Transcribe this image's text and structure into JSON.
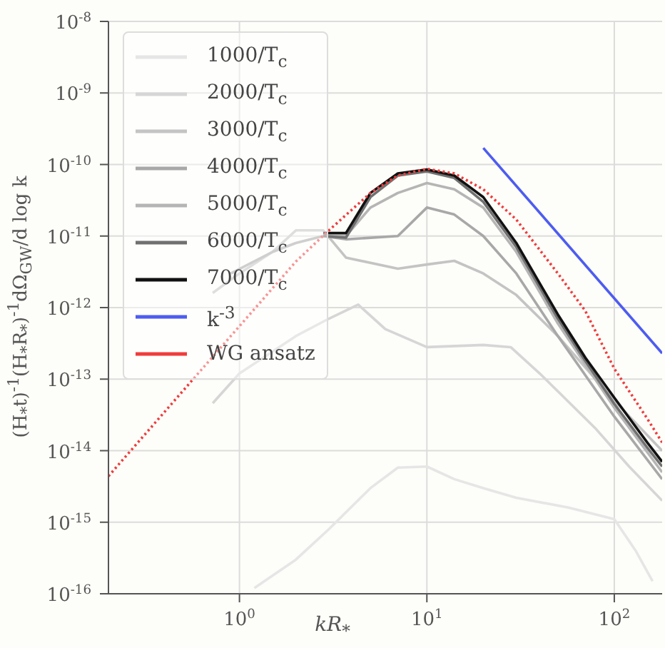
{
  "chart_data": {
    "type": "line",
    "xlabel": "kR$_{*}$",
    "ylabel": "(H$_{*}$t)$^{-1}$(H$_{*}$R$_{*}$)$^{-1}$dΩ$_{GW}$/d log k",
    "log": "xy",
    "grid": true,
    "legend": "top left",
    "marker": "none",
    "xlim": [
      0.2,
      180
    ],
    "ylim": [
      1e-16,
      1e-08
    ],
    "xticks": [
      {
        "value": 1,
        "label": "10$^{0}$"
      },
      {
        "value": 10,
        "label": "10$^{1}$"
      },
      {
        "value": 100,
        "label": "10$^{2}$"
      }
    ],
    "yticks": [
      {
        "value": 1e-16,
        "label": "10$^{-16}$"
      },
      {
        "value": 1e-15,
        "label": "10$^{-15}$"
      },
      {
        "value": 1e-14,
        "label": "10$^{-14}$"
      },
      {
        "value": 1e-13,
        "label": "10$^{-13}$"
      },
      {
        "value": 1e-12,
        "label": "10$^{-12}$"
      },
      {
        "value": 1e-11,
        "label": "10$^{-11}$"
      },
      {
        "value": 1e-10,
        "label": "10$^{-10}$"
      },
      {
        "value": 1e-09,
        "label": "10$^{-9}$"
      },
      {
        "value": 1e-08,
        "label": "10$^{-8}$"
      }
    ],
    "series": [
      {
        "name": "1000/T$_{c}$",
        "color": "#e6e6e6",
        "x": [
          1.2,
          2,
          3,
          5,
          7,
          10,
          14,
          20,
          30,
          57,
          100,
          130,
          160
        ],
        "values": [
          1.2e-16,
          3e-16,
          8e-16,
          3e-15,
          5.8e-15,
          6e-15,
          4e-15,
          3e-15,
          2.2e-15,
          1.6e-15,
          1.1e-15,
          4e-16,
          1.5e-16
        ]
      },
      {
        "name": "2000/T$_{c}$",
        "color": "#d6d6d6",
        "x": [
          0.72,
          1,
          2,
          3,
          4.3,
          6,
          10,
          20,
          28,
          40,
          80,
          120,
          180
        ],
        "values": [
          4.6e-14,
          1.2e-13,
          4e-13,
          7e-13,
          1.1e-12,
          5e-13,
          2.8e-13,
          3e-13,
          2.8e-13,
          1.2e-13,
          2e-14,
          6e-15,
          2e-15
        ]
      },
      {
        "name": "3000/T$_{c}$",
        "color": "#c4c4c4",
        "x": [
          0.72,
          1,
          1.5,
          2,
          2.8,
          3.7,
          7,
          10,
          14,
          20,
          30,
          50,
          100,
          180
        ],
        "values": [
          1.6e-12,
          3e-12,
          6e-12,
          1.2e-11,
          1.2e-11,
          5e-12,
          3.5e-12,
          4e-12,
          4.5e-12,
          3e-12,
          1.5e-12,
          4e-13,
          5e-14,
          1e-14
        ]
      },
      {
        "name": "4000/T$_{c}$",
        "color": "#a8a8a8",
        "x": [
          0.9,
          1.5,
          2,
          2.8,
          3.7,
          7,
          10,
          14,
          20,
          30,
          50,
          100,
          180
        ],
        "values": [
          3e-12,
          6e-12,
          8e-12,
          1e-11,
          9e-12,
          1e-11,
          2.5e-11,
          2e-11,
          1e-11,
          3e-12,
          4e-13,
          3e-14,
          4e-15
        ]
      },
      {
        "name": "5000/T$_{c}$",
        "color": "#b5b5b5",
        "x": [
          2.8,
          3.7,
          5,
          7,
          10,
          14,
          20,
          30,
          50,
          100,
          180
        ],
        "values": [
          1e-11,
          1e-11,
          2.5e-11,
          4e-11,
          5.5e-11,
          4.5e-11,
          2.5e-11,
          6e-12,
          6e-13,
          4e-14,
          5e-15
        ]
      },
      {
        "name": "6000/T$_{c}$",
        "color": "#707070",
        "x": [
          2.8,
          3.7,
          5,
          7,
          10,
          14,
          20,
          30,
          50,
          70,
          100,
          150,
          180
        ],
        "values": [
          1e-11,
          9.5e-12,
          3.5e-11,
          7e-11,
          8e-11,
          6.5e-11,
          3e-11,
          7e-12,
          7e-13,
          1.8e-13,
          4.5e-14,
          1.1e-14,
          6e-15
        ]
      },
      {
        "name": "7000/T$_{c}$",
        "color": "#111111",
        "x": [
          2.8,
          3.7,
          5,
          7,
          10,
          14,
          20,
          30,
          50,
          70,
          100,
          150,
          180
        ],
        "values": [
          1.1e-11,
          1.1e-11,
          4e-11,
          7.5e-11,
          8.5e-11,
          7e-11,
          3.5e-11,
          8e-12,
          8e-13,
          2e-13,
          5.5e-14,
          1.3e-14,
          7e-15
        ]
      },
      {
        "name": "k$^{-3}$",
        "color": "#4d5cf0",
        "x": [
          20,
          180
        ],
        "values": [
          1.7e-10,
          2.3e-13
        ]
      },
      {
        "name": "WG ansatz",
        "color": "#f03c3c",
        "line_style": "dotted",
        "x": [
          0.2,
          1,
          2,
          3,
          5,
          7,
          10,
          14,
          20,
          30,
          50,
          70,
          100,
          150,
          180
        ],
        "values": [
          4.4e-15,
          5.5e-13,
          4.4e-12,
          1.2e-11,
          4e-11,
          7e-11,
          8.7e-11,
          7.5e-11,
          4.5e-11,
          1.7e-11,
          3e-12,
          9e-13,
          1.4e-13,
          2.8e-14,
          1.3e-14
        ]
      }
    ]
  }
}
